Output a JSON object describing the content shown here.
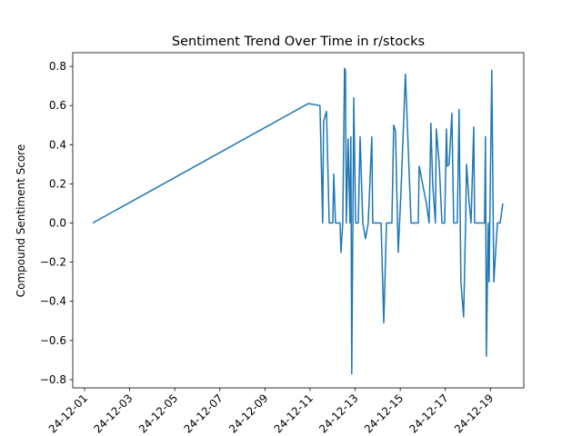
{
  "chart_data": {
    "type": "line",
    "title": "Sentiment Trend Over Time in r/stocks",
    "ylabel": "Compound Sentiment Score",
    "x": [
      1.36,
      10.92,
      11.44,
      11.56,
      11.6,
      11.73,
      11.85,
      12.01,
      12.05,
      12.13,
      12.33,
      12.37,
      12.45,
      12.53,
      12.57,
      12.61,
      12.69,
      12.77,
      12.81,
      12.85,
      12.94,
      13.02,
      13.14,
      13.22,
      13.34,
      13.46,
      13.58,
      13.74,
      13.78,
      13.94,
      14.15,
      14.27,
      14.39,
      14.63,
      14.71,
      14.79,
      14.91,
      15.03,
      15.23,
      15.48,
      15.68,
      15.8,
      15.84,
      16.16,
      16.28,
      16.36,
      16.44,
      16.56,
      16.6,
      16.73,
      16.85,
      16.97,
      17.05,
      17.09,
      17.17,
      17.29,
      17.37,
      17.53,
      17.61,
      17.69,
      17.81,
      17.9,
      17.94,
      18.06,
      18.14,
      18.26,
      18.3,
      18.54,
      18.74,
      18.78,
      18.82,
      18.9,
      18.94,
      19.06,
      19.15,
      19.31,
      19.43,
      19.55
    ],
    "series": [
      {
        "color": "#1f77b4",
        "values": [
          0,
          0.61,
          0.6,
          0,
          0.52,
          0.57,
          0,
          0,
          0.25,
          0,
          0,
          -0.15,
          0,
          0.79,
          0.78,
          0,
          0.43,
          0,
          0.44,
          -0.77,
          0.64,
          0,
          0,
          0.44,
          0,
          -0.08,
          0,
          0.44,
          0,
          0,
          0,
          -0.51,
          0,
          0,
          0.5,
          0.47,
          -0.15,
          0.15,
          0.76,
          0,
          0,
          0,
          0.29,
          0.1,
          0,
          0.51,
          0.2,
          0,
          0.48,
          0.3,
          0,
          0,
          0.48,
          0.29,
          0.3,
          0.56,
          0,
          0,
          0.58,
          -0.3,
          -0.48,
          0,
          0.3,
          0.1,
          0,
          0.49,
          0,
          0,
          0,
          0.44,
          -0.68,
          0,
          -0.3,
          0.78,
          -0.3,
          0,
          0,
          0.1
        ]
      }
    ],
    "xlim": [
      0.476,
      20.48
    ],
    "xticks": [
      {
        "value": 1,
        "label": "24-12-01"
      },
      {
        "value": 3,
        "label": "24-12-03"
      },
      {
        "value": 5,
        "label": "24-12-05"
      },
      {
        "value": 7,
        "label": "24-12-07"
      },
      {
        "value": 9,
        "label": "24-12-09"
      },
      {
        "value": 11,
        "label": "24-12-11"
      },
      {
        "value": 13,
        "label": "24-12-13"
      },
      {
        "value": 15,
        "label": "24-12-15"
      },
      {
        "value": 17,
        "label": "24-12-17"
      },
      {
        "value": 19,
        "label": "24-12-19"
      }
    ],
    "ylim": [
      -0.842,
      0.87
    ],
    "yticks": [
      {
        "value": -0.8,
        "label": "−0.8"
      },
      {
        "value": -0.6,
        "label": "−0.6"
      },
      {
        "value": -0.4,
        "label": "−0.4"
      },
      {
        "value": -0.2,
        "label": "−0.2"
      },
      {
        "value": 0,
        "label": "0.0"
      },
      0.2,
      0.4,
      0.6,
      0.8
    ]
  }
}
